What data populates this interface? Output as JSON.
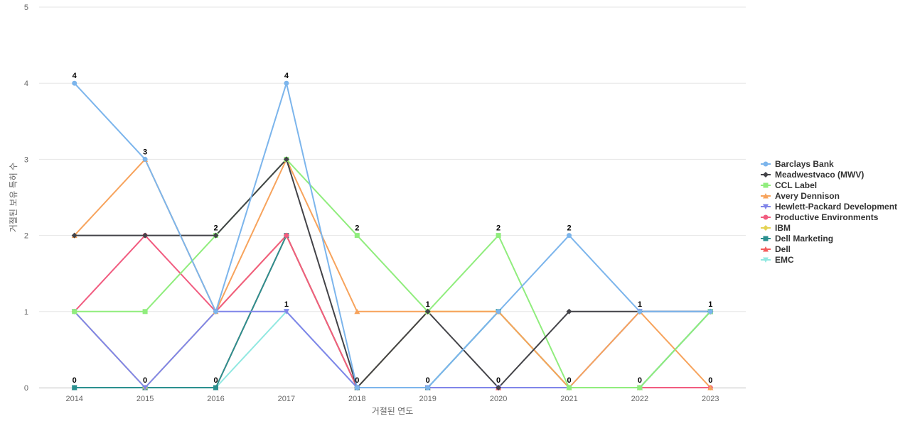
{
  "chart_data": {
    "type": "line",
    "title": "",
    "xlabel": "거절된 연도",
    "ylabel": "거절된 보유 특허 수",
    "x": [
      "2014",
      "2015",
      "2016",
      "2017",
      "2018",
      "2019",
      "2020",
      "2021",
      "2022",
      "2023"
    ],
    "ylim": [
      0,
      5
    ],
    "yticks": [
      0,
      1,
      2,
      3,
      4,
      5
    ],
    "grid": true,
    "legend_position": "right",
    "data_labels": true,
    "series": [
      {
        "name": "Barclays Bank",
        "color": "#7cb5ec",
        "marker": "circle",
        "values": [
          4,
          3,
          1,
          4,
          0,
          0,
          1,
          2,
          1,
          1
        ]
      },
      {
        "name": "Meadwestvaco (MWV)",
        "color": "#434348",
        "marker": "diamond",
        "values": [
          2,
          2,
          2,
          3,
          0,
          1,
          0,
          1,
          1,
          1
        ]
      },
      {
        "name": "CCL Label",
        "color": "#90ed7d",
        "marker": "square",
        "values": [
          1,
          1,
          2,
          3,
          2,
          1,
          2,
          0,
          0,
          1
        ]
      },
      {
        "name": "Avery Dennison",
        "color": "#f7a35c",
        "marker": "triangle",
        "values": [
          2,
          3,
          1,
          3,
          1,
          1,
          1,
          0,
          1,
          0
        ]
      },
      {
        "name": "Hewlett-Packard Development",
        "color": "#8085e9",
        "marker": "triangle-down",
        "values": [
          1,
          0,
          1,
          1,
          0,
          0,
          0,
          0,
          1,
          1
        ]
      },
      {
        "name": "Productive Environments",
        "color": "#f15c80",
        "marker": "circle",
        "values": [
          1,
          2,
          1,
          2,
          0,
          0,
          0,
          0,
          0,
          0
        ]
      },
      {
        "name": "IBM",
        "color": "#e4d354",
        "marker": "diamond",
        "values": [
          1,
          0,
          1,
          2,
          0,
          1,
          1,
          0,
          0,
          0
        ]
      },
      {
        "name": "Dell Marketing",
        "color": "#2b908f",
        "marker": "square",
        "values": [
          0,
          0,
          0,
          2,
          0,
          0,
          1,
          0,
          0,
          1
        ]
      },
      {
        "name": "Dell",
        "color": "#f45b5b",
        "marker": "triangle",
        "values": [
          0,
          0,
          0,
          2,
          0,
          0,
          0,
          0,
          0,
          0
        ]
      },
      {
        "name": "EMC",
        "color": "#91e8e1",
        "marker": "triangle-down",
        "values": [
          0,
          0,
          0,
          1,
          0,
          0,
          1,
          0,
          0,
          1
        ]
      }
    ],
    "top_labels": [
      4,
      3,
      2,
      4,
      2,
      1,
      2,
      2,
      1,
      1
    ],
    "bottom_labels": [
      0,
      0,
      0,
      1,
      0,
      0,
      0,
      0,
      0,
      0
    ]
  }
}
